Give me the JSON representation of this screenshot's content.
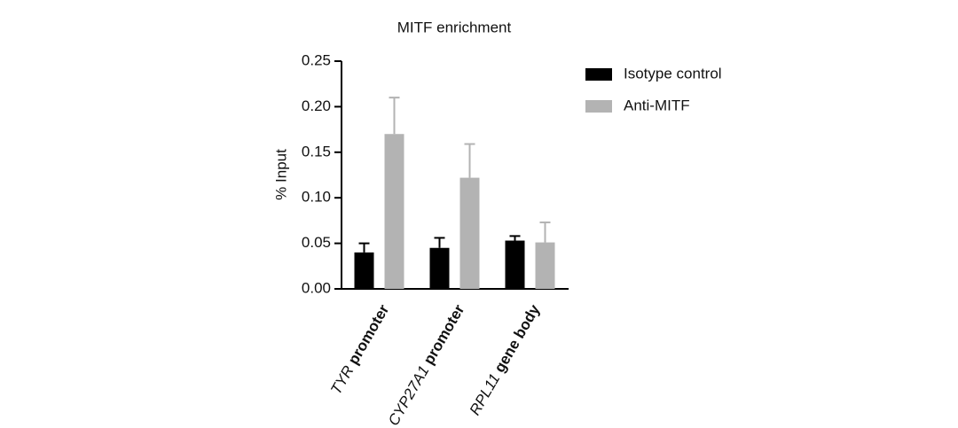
{
  "chart_data": {
    "type": "bar",
    "title": "MITF enrichment",
    "y_label": "% Input",
    "categories": [
      {
        "gene": "TYR",
        "region": "promoter"
      },
      {
        "gene": "CYP27A1",
        "region": "promoter"
      },
      {
        "gene": "RPL11",
        "region": "gene body"
      }
    ],
    "series": [
      {
        "name": "Isotype control",
        "color": "#000000",
        "values": [
          0.04,
          0.045,
          0.053
        ],
        "errors": [
          0.01,
          0.011,
          0.005
        ]
      },
      {
        "name": "Anti-MITF",
        "color": "#b3b3b3",
        "values": [
          0.17,
          0.122,
          0.051
        ],
        "errors": [
          0.04,
          0.037,
          0.022
        ]
      }
    ],
    "ylim": [
      0,
      0.25
    ],
    "yticks": [
      {
        "value": 0,
        "label": "0.00"
      },
      {
        "value": 0.05,
        "label": "0.05"
      },
      {
        "value": 0.1,
        "label": "0.10"
      },
      {
        "value": 0.15,
        "label": "0.15"
      },
      {
        "value": 0.2,
        "label": "0.20"
      },
      {
        "value": 0.25,
        "label": "0.25"
      }
    ],
    "grid": false,
    "legend": "right"
  }
}
